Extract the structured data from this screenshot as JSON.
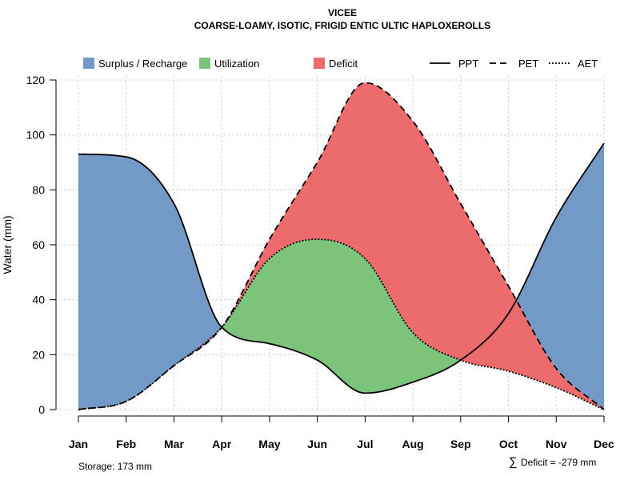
{
  "chart_data": {
    "type": "area",
    "title": "VICEE",
    "subtitle": "COARSE-LOAMY, ISOTIC, FRIGID ENTIC ULTIC HAPLOXEROLLS",
    "xlabel": "",
    "ylabel": "Water (mm)",
    "ylim": [
      0,
      120
    ],
    "yticks": [
      0,
      20,
      40,
      60,
      80,
      100,
      120
    ],
    "grid": true,
    "categories": [
      "Jan",
      "Feb",
      "Mar",
      "Apr",
      "May",
      "Jun",
      "Jul",
      "Aug",
      "Sep",
      "Oct",
      "Nov",
      "Dec"
    ],
    "series": [
      {
        "name": "PPT",
        "style": "solid",
        "values": [
          93,
          92,
          75,
          30,
          24,
          18,
          6,
          10,
          18,
          35,
          70,
          97
        ]
      },
      {
        "name": "PET",
        "style": "dashed",
        "values": [
          0,
          3,
          16,
          30,
          62,
          90,
          119,
          105,
          75,
          45,
          15,
          0
        ]
      },
      {
        "name": "AET",
        "style": "dotted",
        "values": [
          0,
          3,
          16,
          30,
          55,
          62,
          55,
          28,
          18,
          14,
          8,
          0
        ]
      }
    ],
    "areas": [
      {
        "name": "Surplus / Recharge",
        "color": "#7399C6"
      },
      {
        "name": "Utilization",
        "color": "#7CC47C"
      },
      {
        "name": "Deficit",
        "color": "#EC6C6E"
      }
    ],
    "legend_position": "top",
    "annotations": {
      "storage": "Storage: 173 mm",
      "deficit_symbol": "∑",
      "deficit": "Deficit = -279 mm"
    }
  }
}
